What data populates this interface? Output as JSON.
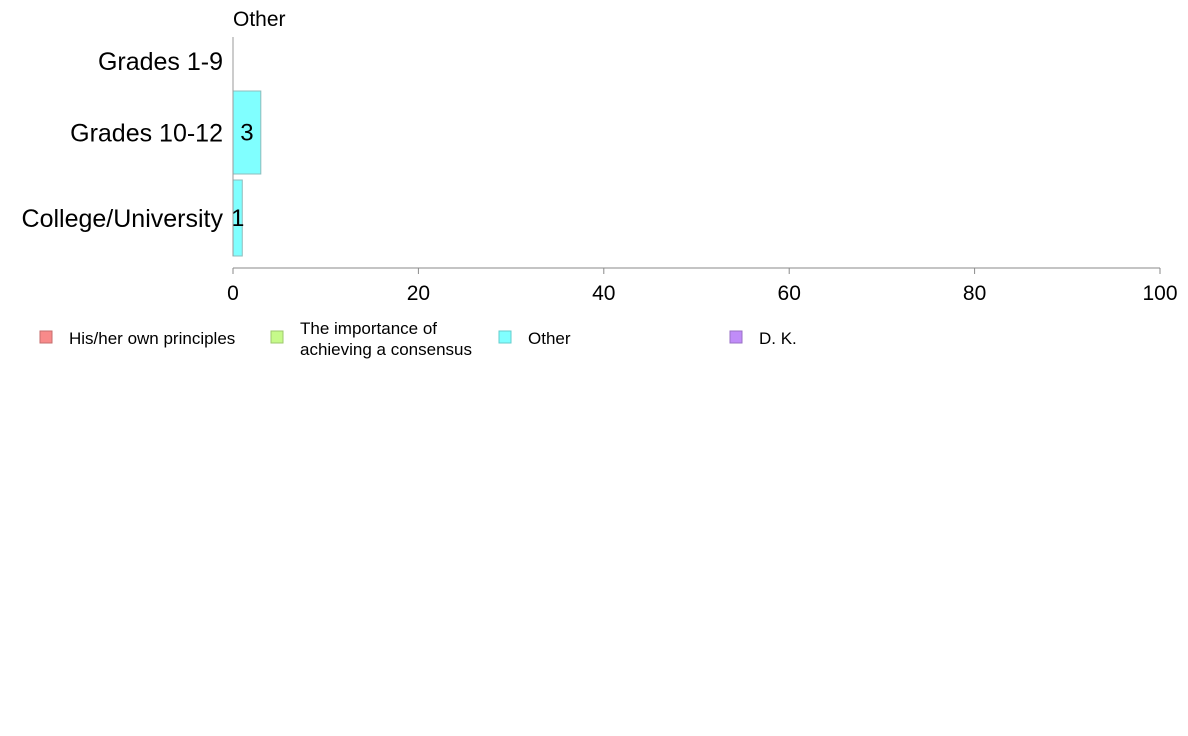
{
  "chart_data": {
    "type": "bar",
    "orientation": "horizontal",
    "title": "Other",
    "categories": [
      "Grades 1-9",
      "Grades 10-12",
      "College/University"
    ],
    "series": [
      {
        "name": "Other",
        "values": [
          0,
          3,
          1
        ],
        "data_labels": [
          "",
          "3",
          "1"
        ],
        "color": "#80ffff"
      }
    ],
    "xlim": [
      0,
      100
    ],
    "x_ticks": [
      0,
      20,
      40,
      60,
      80,
      100
    ],
    "x_tick_labels": [
      "0",
      "20",
      "40",
      "60",
      "80",
      "100"
    ],
    "grid": false,
    "legend_position": "bottom",
    "legend": [
      {
        "lines": [
          "His/her own principles"
        ],
        "color": "#f88a8a",
        "stroke": "#c66e6e"
      },
      {
        "lines": [
          "The importance of",
          "achieving a consensus"
        ],
        "color": "#c6fa8a",
        "stroke": "#9ec86e"
      },
      {
        "lines": [
          "Other"
        ],
        "color": "#80ffff",
        "stroke": "#66cccc"
      },
      {
        "lines": [
          "D. K."
        ],
        "color": "#c08cf8",
        "stroke": "#9a70c6"
      }
    ]
  }
}
